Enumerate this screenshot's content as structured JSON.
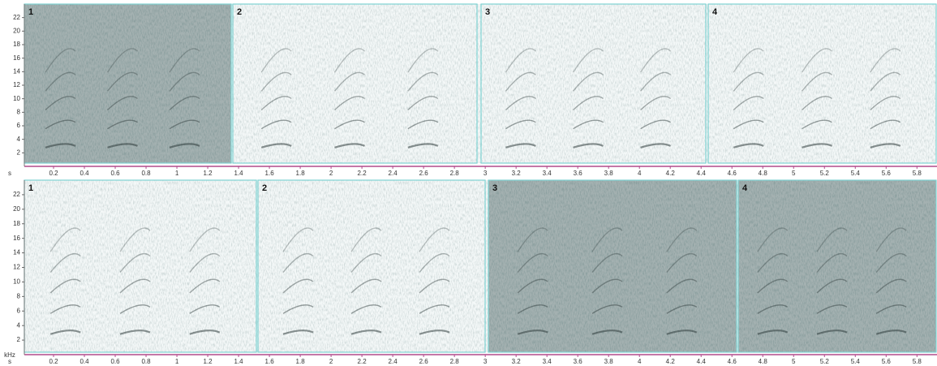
{
  "panels": [
    {
      "segments": [
        "1",
        "2",
        "3",
        "4"
      ],
      "x_unit": "s",
      "ylim": [
        0,
        24
      ],
      "yticks": [
        2,
        4,
        6,
        8,
        10,
        12,
        14,
        16,
        18,
        20,
        22
      ],
      "xlim": [
        0,
        5.93
      ],
      "xticks": [
        0.2,
        0.4,
        0.6,
        0.8,
        1,
        1.2,
        1.4,
        1.6,
        1.8,
        2,
        2.2,
        2.4,
        2.6,
        2.8,
        3,
        3.2,
        3.4,
        3.6,
        3.8,
        4,
        4.2,
        4.4,
        4.6,
        4.8,
        5,
        5.2,
        5.4,
        5.6,
        5.8
      ]
    },
    {
      "segments": [
        "1",
        "2",
        "3",
        "4"
      ],
      "x_unit": "s",
      "y_unit": "kHz",
      "ylim": [
        0,
        24
      ],
      "yticks": [
        2,
        4,
        6,
        8,
        10,
        12,
        14,
        16,
        18,
        20,
        22
      ],
      "xlim": [
        0,
        5.93
      ],
      "xticks": [
        0.2,
        0.4,
        0.6,
        0.8,
        1,
        1.2,
        1.4,
        1.6,
        1.8,
        2,
        2.2,
        2.4,
        2.6,
        2.8,
        3,
        3.2,
        3.4,
        3.6,
        3.8,
        4,
        4.2,
        4.4,
        4.6,
        4.8,
        5,
        5.2,
        5.4,
        5.6,
        5.8
      ]
    }
  ]
}
